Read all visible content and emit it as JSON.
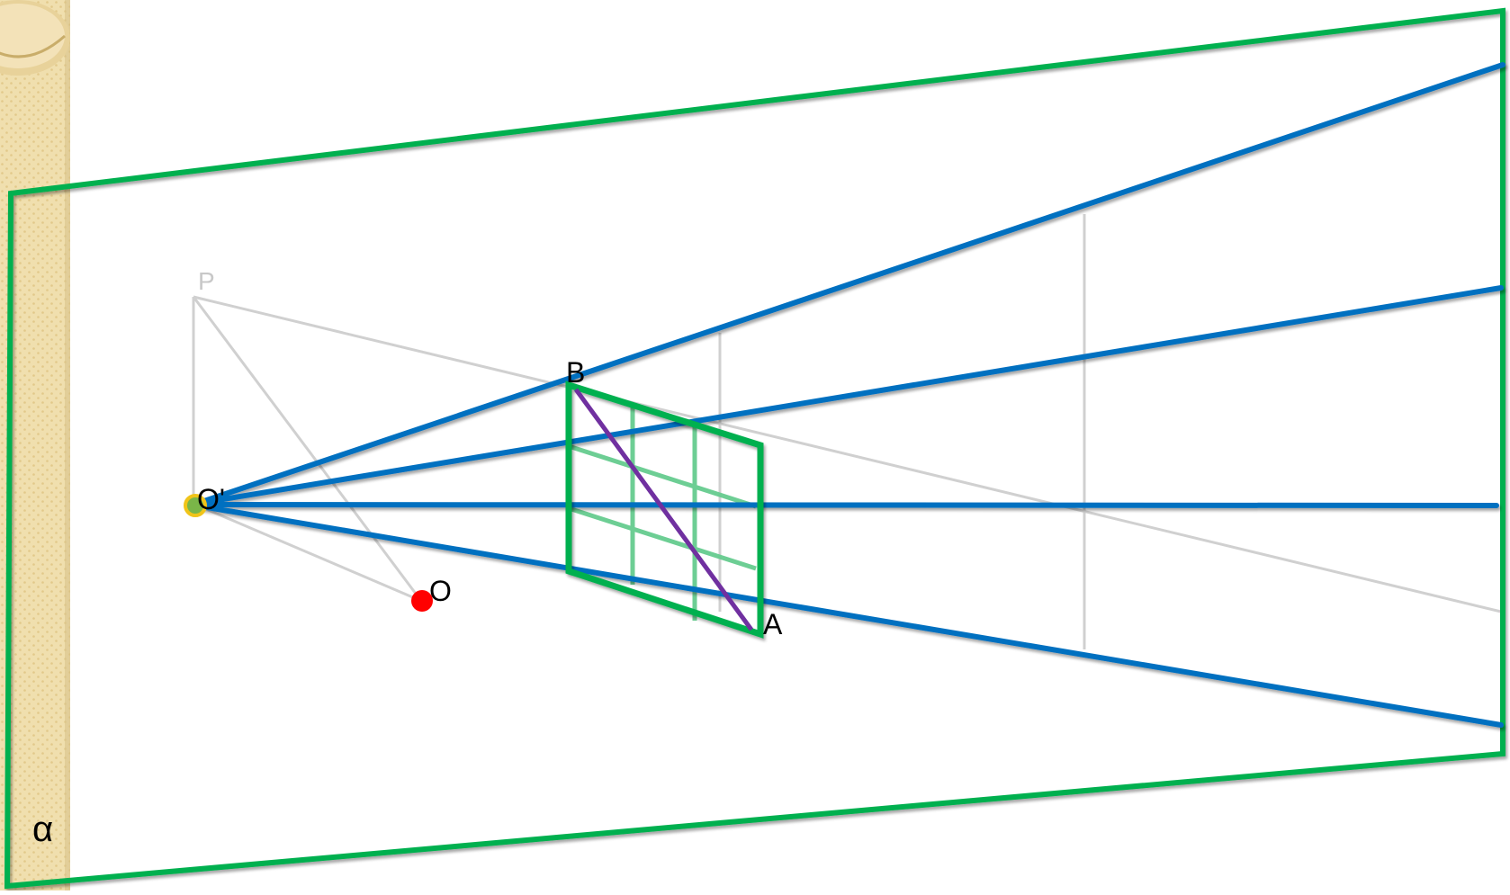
{
  "labels": {
    "p": "P",
    "o_prime": "O'",
    "o": "O",
    "b": "B",
    "a": "A",
    "alpha": "α"
  },
  "colors": {
    "plane_border": "#00b050",
    "ray": "#0070c0",
    "diagonal": "#7030a0",
    "grid_inner": "#66cc8f",
    "construction": "#d0d0d0",
    "point_o": "#ff0000",
    "point_o_prime_ring": "#f0c419",
    "point_o_prime_fill": "#7ab648",
    "side_strip": "#f0dfae",
    "side_strip_dots": "#e2c98a",
    "label_faint": "#c8c8c8",
    "label": "#000000"
  },
  "icons": {
    "side_strip": "textured-strip",
    "scroll_top": "rolled-scroll-icon"
  }
}
